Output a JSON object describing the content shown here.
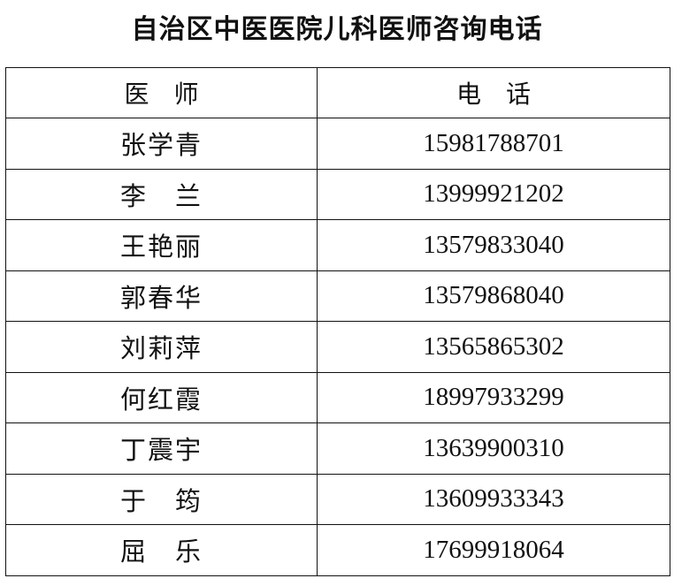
{
  "title": "自治区中医医院儿科医师咨询电话",
  "headers": {
    "doctor": "医　师",
    "phone": "电　话"
  },
  "rows": [
    {
      "name": "张学青",
      "phone": "15981788701"
    },
    {
      "name": "李　兰",
      "phone": "13999921202"
    },
    {
      "name": "王艳丽",
      "phone": "13579833040"
    },
    {
      "name": "郭春华",
      "phone": "13579868040"
    },
    {
      "name": "刘莉萍",
      "phone": "13565865302"
    },
    {
      "name": "何红霞",
      "phone": "18997933299"
    },
    {
      "name": "丁震宇",
      "phone": "13639900310"
    },
    {
      "name": "于　筠",
      "phone": "13609933343"
    },
    {
      "name": "屈　乐",
      "phone": "17699918064"
    }
  ]
}
